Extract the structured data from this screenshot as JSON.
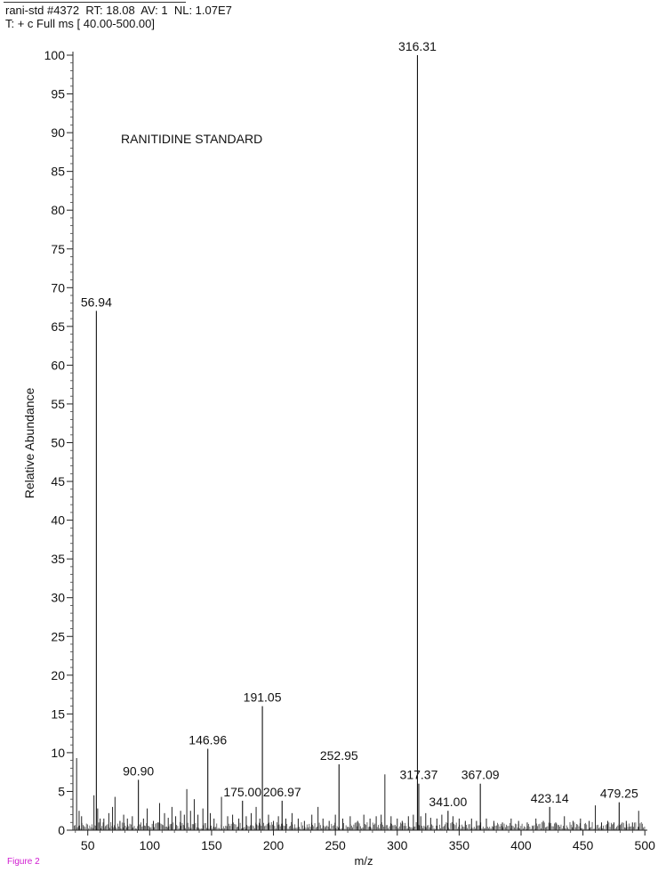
{
  "header": {
    "line1": "rani-std #4372  RT: 18.08  AV: 1  NL: 1.07E7",
    "line2": "T: + c Full ms [ 40.00-500.00]"
  },
  "figure_label": "Figure 2",
  "chart_data": {
    "type": "bar",
    "title": "RANITIDINE STANDARD",
    "xlabel": "m/z",
    "ylabel": "Relative Abundance",
    "xlim": [
      38,
      502
    ],
    "ylim": [
      0,
      100
    ],
    "xticks": [
      50,
      100,
      150,
      200,
      250,
      300,
      350,
      400,
      450,
      500
    ],
    "yticks": [
      0,
      5,
      10,
      15,
      20,
      25,
      30,
      35,
      40,
      45,
      50,
      55,
      60,
      65,
      70,
      75,
      80,
      85,
      90,
      95,
      100
    ],
    "grid": false,
    "labeled_peaks": [
      {
        "mz": 56.94,
        "abundance": 67,
        "label": "56.94"
      },
      {
        "mz": 90.9,
        "abundance": 6.5,
        "label": "90.90"
      },
      {
        "mz": 146.96,
        "abundance": 10.5,
        "label": "146.96"
      },
      {
        "mz": 175.0,
        "abundance": 3.8,
        "label": "175.00"
      },
      {
        "mz": 191.05,
        "abundance": 16,
        "label": "191.05"
      },
      {
        "mz": 206.97,
        "abundance": 3.8,
        "label": "206.97"
      },
      {
        "mz": 252.95,
        "abundance": 8.5,
        "label": "252.95"
      },
      {
        "mz": 316.31,
        "abundance": 100,
        "label": "316.31"
      },
      {
        "mz": 317.37,
        "abundance": 6,
        "label": "317.37"
      },
      {
        "mz": 341.0,
        "abundance": 2.5,
        "label": "341.00"
      },
      {
        "mz": 367.09,
        "abundance": 6,
        "label": "367.09"
      },
      {
        "mz": 423.14,
        "abundance": 3,
        "label": "423.14"
      },
      {
        "mz": 479.25,
        "abundance": 3.6,
        "label": "479.25"
      }
    ],
    "minor_peaks": [
      {
        "mz": 41,
        "abundance": 9.3
      },
      {
        "mz": 43,
        "abundance": 2.5
      },
      {
        "mz": 45,
        "abundance": 1.8
      },
      {
        "mz": 55,
        "abundance": 4.5
      },
      {
        "mz": 58,
        "abundance": 2.8
      },
      {
        "mz": 60,
        "abundance": 1.5
      },
      {
        "mz": 63,
        "abundance": 1.5
      },
      {
        "mz": 67,
        "abundance": 2.2
      },
      {
        "mz": 70,
        "abundance": 3.0
      },
      {
        "mz": 72,
        "abundance": 4.3
      },
      {
        "mz": 76,
        "abundance": 1.2
      },
      {
        "mz": 79,
        "abundance": 2.0
      },
      {
        "mz": 82,
        "abundance": 1.5
      },
      {
        "mz": 86,
        "abundance": 1.8
      },
      {
        "mz": 95,
        "abundance": 1.5
      },
      {
        "mz": 98,
        "abundance": 2.8
      },
      {
        "mz": 103,
        "abundance": 1.2
      },
      {
        "mz": 108,
        "abundance": 3.5
      },
      {
        "mz": 112,
        "abundance": 2.2
      },
      {
        "mz": 115,
        "abundance": 1.6
      },
      {
        "mz": 118,
        "abundance": 3.0
      },
      {
        "mz": 121,
        "abundance": 1.8
      },
      {
        "mz": 125,
        "abundance": 2.5
      },
      {
        "mz": 128,
        "abundance": 2.0
      },
      {
        "mz": 130,
        "abundance": 5.3
      },
      {
        "mz": 133,
        "abundance": 2.5
      },
      {
        "mz": 136,
        "abundance": 4.0
      },
      {
        "mz": 139,
        "abundance": 2.0
      },
      {
        "mz": 143,
        "abundance": 2.8
      },
      {
        "mz": 149,
        "abundance": 2.2
      },
      {
        "mz": 152,
        "abundance": 1.5
      },
      {
        "mz": 158,
        "abundance": 4.3
      },
      {
        "mz": 163,
        "abundance": 1.8
      },
      {
        "mz": 167,
        "abundance": 2.0
      },
      {
        "mz": 172,
        "abundance": 1.5
      },
      {
        "mz": 178,
        "abundance": 1.8
      },
      {
        "mz": 182,
        "abundance": 2.2
      },
      {
        "mz": 186,
        "abundance": 3.0
      },
      {
        "mz": 189,
        "abundance": 1.5
      },
      {
        "mz": 196,
        "abundance": 2.0
      },
      {
        "mz": 200,
        "abundance": 1.2
      },
      {
        "mz": 204,
        "abundance": 1.8
      },
      {
        "mz": 210,
        "abundance": 1.5
      },
      {
        "mz": 215,
        "abundance": 2.2
      },
      {
        "mz": 220,
        "abundance": 1.5
      },
      {
        "mz": 225,
        "abundance": 1.2
      },
      {
        "mz": 231,
        "abundance": 2.0
      },
      {
        "mz": 236,
        "abundance": 3.0
      },
      {
        "mz": 240,
        "abundance": 1.5
      },
      {
        "mz": 245,
        "abundance": 1.2
      },
      {
        "mz": 250,
        "abundance": 2.0
      },
      {
        "mz": 256,
        "abundance": 1.5
      },
      {
        "mz": 262,
        "abundance": 1.8
      },
      {
        "mz": 268,
        "abundance": 1.2
      },
      {
        "mz": 273,
        "abundance": 2.0
      },
      {
        "mz": 278,
        "abundance": 1.5
      },
      {
        "mz": 283,
        "abundance": 1.8
      },
      {
        "mz": 287,
        "abundance": 2.0
      },
      {
        "mz": 290,
        "abundance": 7.2
      },
      {
        "mz": 295,
        "abundance": 1.8
      },
      {
        "mz": 300,
        "abundance": 1.5
      },
      {
        "mz": 304,
        "abundance": 1.2
      },
      {
        "mz": 309,
        "abundance": 1.8
      },
      {
        "mz": 313,
        "abundance": 2.0
      },
      {
        "mz": 319,
        "abundance": 1.8
      },
      {
        "mz": 323,
        "abundance": 2.2
      },
      {
        "mz": 327,
        "abundance": 1.6
      },
      {
        "mz": 332,
        "abundance": 1.5
      },
      {
        "mz": 336,
        "abundance": 2.0
      },
      {
        "mz": 345,
        "abundance": 1.8
      },
      {
        "mz": 350,
        "abundance": 1.5
      },
      {
        "mz": 355,
        "abundance": 1.2
      },
      {
        "mz": 360,
        "abundance": 1.5
      },
      {
        "mz": 364,
        "abundance": 1.2
      },
      {
        "mz": 372,
        "abundance": 1.5
      },
      {
        "mz": 378,
        "abundance": 1.2
      },
      {
        "mz": 385,
        "abundance": 1.0
      },
      {
        "mz": 392,
        "abundance": 1.5
      },
      {
        "mz": 398,
        "abundance": 1.2
      },
      {
        "mz": 405,
        "abundance": 1.0
      },
      {
        "mz": 412,
        "abundance": 1.5
      },
      {
        "mz": 418,
        "abundance": 1.2
      },
      {
        "mz": 428,
        "abundance": 1.0
      },
      {
        "mz": 435,
        "abundance": 1.8
      },
      {
        "mz": 442,
        "abundance": 1.2
      },
      {
        "mz": 448,
        "abundance": 1.5
      },
      {
        "mz": 455,
        "abundance": 1.2
      },
      {
        "mz": 460,
        "abundance": 3.2
      },
      {
        "mz": 465,
        "abundance": 1.0
      },
      {
        "mz": 470,
        "abundance": 1.2
      },
      {
        "mz": 475,
        "abundance": 1.0
      },
      {
        "mz": 485,
        "abundance": 1.2
      },
      {
        "mz": 490,
        "abundance": 1.0
      },
      {
        "mz": 495,
        "abundance": 2.5
      }
    ]
  }
}
